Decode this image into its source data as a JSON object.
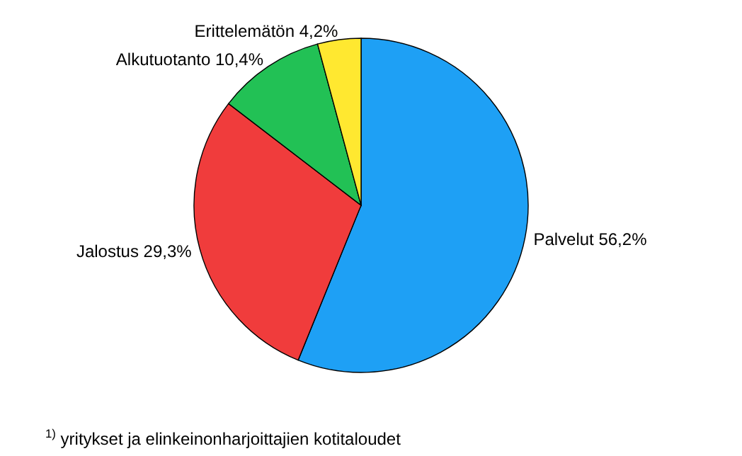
{
  "chart_data": {
    "type": "pie",
    "categories": [
      "Palvelut",
      "Jalostus",
      "Alkutuotanto",
      "Erittelemätön"
    ],
    "values": [
      56.2,
      29.3,
      10.4,
      4.2
    ],
    "value_labels": [
      "56,2%",
      "29,3%",
      "10,4%",
      "4,2%"
    ],
    "colors": [
      "#1ea0f5",
      "#f03c3c",
      "#22c155",
      "#ffe830"
    ],
    "annotations": [
      "$^{1)}$ yritykset ja elinkeinonharjoittajien kotitaloudet"
    ]
  }
}
